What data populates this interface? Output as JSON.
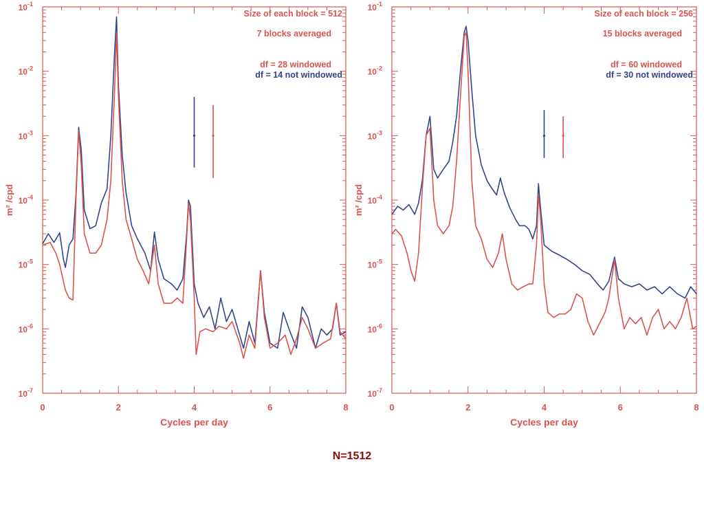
{
  "colors": {
    "axis": "#d9534f",
    "windowed": "#d9534f",
    "not_windowed": "#33448a",
    "footer": "#8a0a0a"
  },
  "footer": {
    "text": "N=1512"
  },
  "chart_data": [
    {
      "type": "line",
      "xlabel": "Cycles per day",
      "ylabel": "m² /cpd",
      "xlim": [
        0,
        8
      ],
      "ylim": [
        1e-07,
        0.1
      ],
      "yscale": "log",
      "x_ticks": [
        "0",
        "2",
        "4",
        "6",
        "8"
      ],
      "y_tick_bases": [
        "10",
        "10",
        "10",
        "10",
        "10",
        "10",
        "10"
      ],
      "y_tick_exps": [
        "-7",
        "-6",
        "-5",
        "-4",
        "-3",
        "-2",
        "-1"
      ],
      "annotations": {
        "block_size": "Size of each block =  512",
        "blocks_averaged": "7 blocks averaged",
        "df_windowed": "df =  28 windowed",
        "df_not_windowed": "df = 14 not windowed"
      },
      "error_bars": [
        {
          "series": "not windowed",
          "x": 4.0,
          "center": 0.001,
          "low": 0.00032,
          "high": 0.004
        },
        {
          "series": "windowed",
          "x": 4.5,
          "center": 0.001,
          "low": 0.00022,
          "high": 0.003
        }
      ],
      "series": [
        {
          "name": "not windowed",
          "points": [
            [
              0,
              2.1e-05
            ],
            [
              0.15,
              3e-05
            ],
            [
              0.3,
              2.2e-05
            ],
            [
              0.45,
              3.1e-05
            ],
            [
              0.55,
              1.2e-05
            ],
            [
              0.6,
              9e-06
            ],
            [
              0.7,
              2e-05
            ],
            [
              0.8,
              2.5e-05
            ],
            [
              0.88,
              0.00012
            ],
            [
              0.95,
              0.00135
            ],
            [
              1.02,
              0.0006
            ],
            [
              1.1,
              7e-05
            ],
            [
              1.25,
              3.6e-05
            ],
            [
              1.4,
              4e-05
            ],
            [
              1.55,
              9e-05
            ],
            [
              1.7,
              0.00015
            ],
            [
              1.8,
              0.001
            ],
            [
              1.9,
              0.02
            ],
            [
              1.95,
              0.07
            ],
            [
              2.0,
              0.006
            ],
            [
              2.1,
              0.0005
            ],
            [
              2.2,
              0.00013
            ],
            [
              2.35,
              4e-05
            ],
            [
              2.5,
              2.5e-05
            ],
            [
              2.7,
              1.5e-05
            ],
            [
              2.85,
              8e-06
            ],
            [
              2.95,
              3.2e-05
            ],
            [
              3.05,
              1.2e-05
            ],
            [
              3.2,
              6e-06
            ],
            [
              3.4,
              5e-06
            ],
            [
              3.55,
              4e-06
            ],
            [
              3.7,
              6e-06
            ],
            [
              3.8,
              3e-05
            ],
            [
              3.85,
              0.0001
            ],
            [
              3.9,
              8e-05
            ],
            [
              4.0,
              5e-06
            ],
            [
              4.1,
              2.5e-06
            ],
            [
              4.25,
              1.5e-06
            ],
            [
              4.4,
              2.2e-06
            ],
            [
              4.55,
              1e-06
            ],
            [
              4.7,
              3e-06
            ],
            [
              4.85,
              1.3e-06
            ],
            [
              5.0,
              2e-06
            ],
            [
              5.15,
              1e-06
            ],
            [
              5.3,
              5e-07
            ],
            [
              5.45,
              1.3e-06
            ],
            [
              5.6,
              6e-07
            ],
            [
              5.75,
              8e-06
            ],
            [
              5.85,
              1.8e-06
            ],
            [
              6.0,
              6e-07
            ],
            [
              6.2,
              5e-07
            ],
            [
              6.35,
              1.8e-06
            ],
            [
              6.5,
              1e-06
            ],
            [
              6.7,
              5e-07
            ],
            [
              6.85,
              2.2e-06
            ],
            [
              7.0,
              1.5e-06
            ],
            [
              7.2,
              5e-07
            ],
            [
              7.35,
              1e-06
            ],
            [
              7.5,
              8e-07
            ],
            [
              7.65,
              1e-06
            ],
            [
              7.75,
              2.5e-06
            ],
            [
              7.85,
              8e-07
            ],
            [
              8.0,
              9e-07
            ]
          ]
        },
        {
          "name": "windowed",
          "points": [
            [
              0,
              2e-05
            ],
            [
              0.2,
              2.2e-05
            ],
            [
              0.35,
              1.5e-05
            ],
            [
              0.45,
              1e-05
            ],
            [
              0.6,
              4e-06
            ],
            [
              0.7,
              3e-06
            ],
            [
              0.8,
              2.8e-06
            ],
            [
              0.88,
              0.0001
            ],
            [
              0.95,
              0.0012
            ],
            [
              1.02,
              0.00035
            ],
            [
              1.1,
              3e-05
            ],
            [
              1.25,
              1.5e-05
            ],
            [
              1.4,
              1.5e-05
            ],
            [
              1.55,
              2e-05
            ],
            [
              1.7,
              5e-05
            ],
            [
              1.8,
              0.0002
            ],
            [
              1.9,
              0.005
            ],
            [
              1.95,
              0.04
            ],
            [
              2.0,
              0.004
            ],
            [
              2.1,
              0.0002
            ],
            [
              2.2,
              5e-05
            ],
            [
              2.35,
              2.5e-05
            ],
            [
              2.5,
              1.2e-05
            ],
            [
              2.65,
              8e-06
            ],
            [
              2.8,
              5e-06
            ],
            [
              2.95,
              2e-05
            ],
            [
              3.05,
              5e-06
            ],
            [
              3.2,
              2.5e-06
            ],
            [
              3.4,
              2.5e-06
            ],
            [
              3.55,
              3e-06
            ],
            [
              3.7,
              2.5e-06
            ],
            [
              3.8,
              2.5e-05
            ],
            [
              3.85,
              9e-05
            ],
            [
              3.9,
              5e-05
            ],
            [
              4.0,
              3e-06
            ],
            [
              4.05,
              4e-07
            ],
            [
              4.15,
              9e-07
            ],
            [
              4.3,
              1e-06
            ],
            [
              4.5,
              9e-07
            ],
            [
              4.65,
              1.1e-06
            ],
            [
              4.85,
              1e-06
            ],
            [
              5.0,
              1.3e-06
            ],
            [
              5.2,
              6e-07
            ],
            [
              5.3,
              3.5e-07
            ],
            [
              5.45,
              8e-07
            ],
            [
              5.6,
              5e-07
            ],
            [
              5.75,
              8e-06
            ],
            [
              5.85,
              1.5e-06
            ],
            [
              6.0,
              5e-07
            ],
            [
              6.2,
              6e-07
            ],
            [
              6.4,
              8e-07
            ],
            [
              6.55,
              4e-07
            ],
            [
              6.7,
              7e-07
            ],
            [
              6.85,
              1.5e-06
            ],
            [
              7.0,
              1e-06
            ],
            [
              7.2,
              5e-07
            ],
            [
              7.4,
              6e-07
            ],
            [
              7.6,
              7e-07
            ],
            [
              7.75,
              2.5e-06
            ],
            [
              7.85,
              9e-07
            ],
            [
              8.0,
              7e-07
            ]
          ]
        }
      ]
    },
    {
      "type": "line",
      "xlabel": "Cycles per day",
      "ylabel": "m² /cpd",
      "xlim": [
        0,
        8
      ],
      "ylim": [
        1e-07,
        0.1
      ],
      "yscale": "log",
      "x_ticks": [
        "0",
        "2",
        "4",
        "6",
        "8"
      ],
      "y_tick_bases": [
        "10",
        "10",
        "10",
        "10",
        "10",
        "10",
        "10"
      ],
      "y_tick_exps": [
        "-7",
        "-6",
        "-5",
        "-4",
        "-3",
        "-2",
        "-1"
      ],
      "annotations": {
        "block_size": "Size of each block =  256",
        "blocks_averaged": "15 blocks averaged",
        "df_windowed": "df =  60 windowed",
        "df_not_windowed": "df = 30 not windowed"
      },
      "error_bars": [
        {
          "series": "not windowed",
          "x": 4.0,
          "center": 0.001,
          "low": 0.00045,
          "high": 0.0025
        },
        {
          "series": "windowed",
          "x": 4.5,
          "center": 0.001,
          "low": 0.00045,
          "high": 0.002
        }
      ],
      "series": [
        {
          "name": "not windowed",
          "points": [
            [
              0,
              6e-05
            ],
            [
              0.15,
              8e-05
            ],
            [
              0.3,
              7e-05
            ],
            [
              0.45,
              8.5e-05
            ],
            [
              0.6,
              6e-05
            ],
            [
              0.7,
              9e-05
            ],
            [
              0.8,
              0.0002
            ],
            [
              0.9,
              0.001
            ],
            [
              1.0,
              0.002
            ],
            [
              1.1,
              0.0003
            ],
            [
              1.2,
              0.00022
            ],
            [
              1.35,
              0.0003
            ],
            [
              1.5,
              0.0004
            ],
            [
              1.6,
              0.0008
            ],
            [
              1.7,
              0.002
            ],
            [
              1.8,
              0.01
            ],
            [
              1.9,
              0.04
            ],
            [
              1.95,
              0.05
            ],
            [
              2.0,
              0.03
            ],
            [
              2.1,
              0.005
            ],
            [
              2.2,
              0.001
            ],
            [
              2.35,
              0.00035
            ],
            [
              2.5,
              0.0002
            ],
            [
              2.6,
              0.00016
            ],
            [
              2.75,
              0.00012
            ],
            [
              2.85,
              0.00022
            ],
            [
              2.95,
              0.00013
            ],
            [
              3.1,
              7.5e-05
            ],
            [
              3.25,
              5e-05
            ],
            [
              3.35,
              4e-05
            ],
            [
              3.5,
              4e-05
            ],
            [
              3.6,
              3.5e-05
            ],
            [
              3.7,
              2.5e-05
            ],
            [
              3.8,
              4e-05
            ],
            [
              3.85,
              0.00018
            ],
            [
              3.9,
              8e-05
            ],
            [
              4.0,
              2e-05
            ],
            [
              4.2,
              1.6e-05
            ],
            [
              4.4,
              1.4e-05
            ],
            [
              4.6,
              1.2e-05
            ],
            [
              4.8,
              1e-05
            ],
            [
              5.0,
              8e-06
            ],
            [
              5.2,
              7e-06
            ],
            [
              5.4,
              5e-06
            ],
            [
              5.55,
              4e-06
            ],
            [
              5.7,
              5.5e-06
            ],
            [
              5.85,
              1.3e-05
            ],
            [
              5.95,
              6e-06
            ],
            [
              6.1,
              5e-06
            ],
            [
              6.3,
              4.5e-06
            ],
            [
              6.5,
              5e-06
            ],
            [
              6.7,
              4e-06
            ],
            [
              6.9,
              4.5e-06
            ],
            [
              7.1,
              3.5e-06
            ],
            [
              7.3,
              4.5e-06
            ],
            [
              7.5,
              3.5e-06
            ],
            [
              7.7,
              3e-06
            ],
            [
              7.85,
              4.5e-06
            ],
            [
              8.0,
              3.5e-06
            ]
          ]
        },
        {
          "name": "windowed",
          "points": [
            [
              0,
              3e-05
            ],
            [
              0.1,
              3.5e-05
            ],
            [
              0.25,
              2.8e-05
            ],
            [
              0.4,
              1.5e-05
            ],
            [
              0.5,
              8e-06
            ],
            [
              0.6,
              5.5e-06
            ],
            [
              0.7,
              1.5e-05
            ],
            [
              0.8,
              0.00015
            ],
            [
              0.9,
              0.001
            ],
            [
              1.0,
              0.0013
            ],
            [
              1.1,
              0.0001
            ],
            [
              1.2,
              4e-05
            ],
            [
              1.35,
              3e-05
            ],
            [
              1.5,
              4e-05
            ],
            [
              1.6,
              8e-05
            ],
            [
              1.7,
              0.0004
            ],
            [
              1.8,
              0.004
            ],
            [
              1.9,
              0.035
            ],
            [
              1.95,
              0.04
            ],
            [
              2.0,
              0.01
            ],
            [
              2.1,
              0.0002
            ],
            [
              2.2,
              4e-05
            ],
            [
              2.35,
              2.5e-05
            ],
            [
              2.5,
              1.2e-05
            ],
            [
              2.65,
              9e-06
            ],
            [
              2.8,
              1.5e-05
            ],
            [
              2.9,
              3e-05
            ],
            [
              3.0,
              1.2e-05
            ],
            [
              3.15,
              5e-06
            ],
            [
              3.3,
              4e-06
            ],
            [
              3.45,
              4.5e-06
            ],
            [
              3.6,
              5e-06
            ],
            [
              3.7,
              5e-06
            ],
            [
              3.8,
              2e-05
            ],
            [
              3.85,
              0.00012
            ],
            [
              3.9,
              6e-05
            ],
            [
              4.0,
              5e-06
            ],
            [
              4.1,
              1.8e-06
            ],
            [
              4.25,
              1.5e-06
            ],
            [
              4.4,
              1.7e-06
            ],
            [
              4.55,
              1.7e-06
            ],
            [
              4.7,
              2e-06
            ],
            [
              4.85,
              3.5e-06
            ],
            [
              5.0,
              3e-06
            ],
            [
              5.15,
              1.3e-06
            ],
            [
              5.3,
              8e-07
            ],
            [
              5.45,
              1.2e-06
            ],
            [
              5.6,
              1.8e-06
            ],
            [
              5.7,
              3e-06
            ],
            [
              5.85,
              1.2e-05
            ],
            [
              5.95,
              3e-06
            ],
            [
              6.1,
              1e-06
            ],
            [
              6.25,
              1.5e-06
            ],
            [
              6.4,
              1.2e-06
            ],
            [
              6.55,
              1.5e-06
            ],
            [
              6.7,
              8e-07
            ],
            [
              6.85,
              1.5e-06
            ],
            [
              7.0,
              2e-06
            ],
            [
              7.15,
              1e-06
            ],
            [
              7.3,
              1.3e-06
            ],
            [
              7.45,
              1e-06
            ],
            [
              7.6,
              1.5e-06
            ],
            [
              7.75,
              3e-06
            ],
            [
              7.9,
              1e-06
            ],
            [
              8.0,
              1.1e-06
            ]
          ]
        }
      ]
    }
  ]
}
